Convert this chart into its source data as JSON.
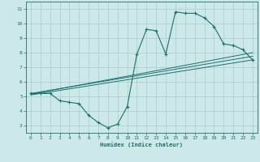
{
  "xlabel": "Humidex (Indice chaleur)",
  "bg_color": "#cce8e8",
  "grid_color": "#aacccc",
  "line_color": "#1a7070",
  "xlim": [
    -0.5,
    23.5
  ],
  "ylim": [
    2.5,
    11.5
  ],
  "xticks": [
    0,
    1,
    2,
    3,
    4,
    5,
    6,
    7,
    8,
    9,
    10,
    11,
    12,
    13,
    14,
    15,
    16,
    17,
    18,
    19,
    20,
    21,
    22,
    23
  ],
  "yticks": [
    3,
    4,
    5,
    6,
    7,
    8,
    9,
    10,
    11
  ],
  "series1_x": [
    0,
    1,
    2,
    3,
    4,
    5,
    6,
    7,
    8,
    9,
    10,
    11,
    12,
    13,
    14,
    15,
    16,
    17,
    18,
    19,
    20,
    21,
    22,
    23
  ],
  "series1_y": [
    5.2,
    5.2,
    5.2,
    4.7,
    4.6,
    4.5,
    3.7,
    3.2,
    2.85,
    3.1,
    4.3,
    7.9,
    9.6,
    9.5,
    7.9,
    10.8,
    10.7,
    10.7,
    10.4,
    9.8,
    8.6,
    8.5,
    8.2,
    7.5
  ],
  "trend1_x": [
    0,
    23
  ],
  "trend1_y": [
    5.2,
    7.75
  ],
  "trend2_x": [
    0,
    23
  ],
  "trend2_y": [
    5.15,
    8.0
  ],
  "trend3_x": [
    0,
    23
  ],
  "trend3_y": [
    5.1,
    7.5
  ]
}
